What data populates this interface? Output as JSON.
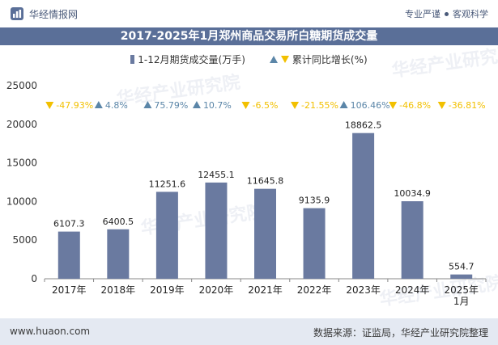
{
  "header": {
    "brand_name": "华经情报网",
    "tag_1": "专业严谨",
    "tag_2": "客观科学"
  },
  "footer": {
    "website": "www.huaon.com",
    "source": "数据来源：证监局，华经产业研究院整理"
  },
  "watermark": "华经产业研究院",
  "colors": {
    "bar": "#6a7aa0",
    "up": "#5b86a8",
    "down": "#f2c000",
    "title_band": "#5a6f98"
  },
  "chart_data": {
    "type": "bar",
    "title": "2017-2025年1月郑州商品交易所白糖期货成交量",
    "categories": [
      "2017年",
      "2018年",
      "2019年",
      "2020年",
      "2021年",
      "2022年",
      "2023年",
      "2024年",
      "2025年\n1月"
    ],
    "series": [
      {
        "name": "1-12月期货成交量(万手)",
        "values": [
          6107.3,
          6400.5,
          11251.6,
          12455.1,
          11645.8,
          9135.9,
          18862.5,
          10034.9,
          554.7
        ]
      },
      {
        "name": "累计同比增长(%)",
        "values": [
          -47.93,
          4.8,
          75.79,
          10.7,
          -6.5,
          -21.55,
          106.46,
          -46.8,
          -36.81
        ]
      }
    ],
    "data_labels": [
      "6107.3",
      "6400.5",
      "11251.6",
      "12455.1",
      "11645.8",
      "9135.9",
      "18862.5",
      "10034.9",
      "554.7"
    ],
    "growth_labels": [
      "-47.93%",
      "4.8%",
      "75.79%",
      "10.7%",
      "-6.5%",
      "-21.55%",
      "106.46%",
      "-46.8%",
      "-36.81%"
    ],
    "ylim": [
      0,
      25000
    ],
    "yticks": [
      0,
      5000,
      10000,
      15000,
      20000,
      25000
    ],
    "ytick_labels": [
      "0",
      "5000",
      "10000",
      "15000",
      "20000",
      "25000"
    ],
    "legend_position": "top-center",
    "grid": false
  }
}
